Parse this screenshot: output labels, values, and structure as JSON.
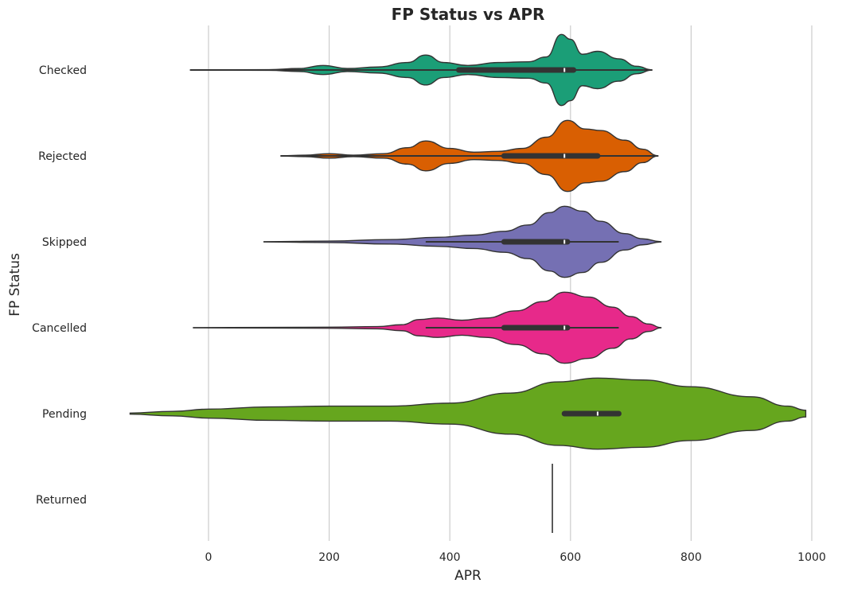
{
  "chart_data": {
    "type": "violin",
    "orientation": "horizontal",
    "title": "FP Status vs APR",
    "xlabel": "APR",
    "ylabel": "FP Status",
    "xlim": [
      -140,
      1000
    ],
    "xticks": [
      0,
      200,
      400,
      600,
      800,
      1000
    ],
    "grid": "vertical",
    "categories": [
      "Checked",
      "Rejected",
      "Skipped",
      "Cancelled",
      "Pending",
      "Returned"
    ],
    "series": [
      {
        "category": "Checked",
        "color": "#1b9e77",
        "min": -30,
        "max": 735,
        "q1": 415,
        "median": 590,
        "q3": 605,
        "whisker_low": -30,
        "whisker_high": 735,
        "density": [
          [
            -30,
            0.004
          ],
          [
            100,
            0.01
          ],
          [
            150,
            0.04
          ],
          [
            190,
            0.12
          ],
          [
            230,
            0.04
          ],
          [
            280,
            0.08
          ],
          [
            330,
            0.2
          ],
          [
            360,
            0.4
          ],
          [
            390,
            0.2
          ],
          [
            430,
            0.12
          ],
          [
            480,
            0.2
          ],
          [
            530,
            0.22
          ],
          [
            560,
            0.35
          ],
          [
            585,
            0.95
          ],
          [
            600,
            0.82
          ],
          [
            620,
            0.42
          ],
          [
            645,
            0.5
          ],
          [
            680,
            0.3
          ],
          [
            710,
            0.1
          ],
          [
            735,
            0.004
          ]
        ]
      },
      {
        "category": "Rejected",
        "color": "#d95f02",
        "min": 120,
        "max": 745,
        "q1": 490,
        "median": 590,
        "q3": 645,
        "whisker_low": 120,
        "whisker_high": 745,
        "density": [
          [
            120,
            0.004
          ],
          [
            160,
            0.02
          ],
          [
            200,
            0.06
          ],
          [
            240,
            0.02
          ],
          [
            290,
            0.06
          ],
          [
            330,
            0.22
          ],
          [
            360,
            0.4
          ],
          [
            400,
            0.2
          ],
          [
            440,
            0.1
          ],
          [
            480,
            0.12
          ],
          [
            520,
            0.2
          ],
          [
            560,
            0.5
          ],
          [
            595,
            0.95
          ],
          [
            625,
            0.72
          ],
          [
            650,
            0.68
          ],
          [
            690,
            0.42
          ],
          [
            720,
            0.18
          ],
          [
            745,
            0.004
          ]
        ]
      },
      {
        "category": "Skipped",
        "color": "#7570b3",
        "min": 92,
        "max": 750,
        "q1": 490,
        "median": 590,
        "q3": 595,
        "whisker_low": 360,
        "whisker_high": 680,
        "density": [
          [
            92,
            0.004
          ],
          [
            200,
            0.02
          ],
          [
            300,
            0.06
          ],
          [
            380,
            0.12
          ],
          [
            440,
            0.18
          ],
          [
            490,
            0.28
          ],
          [
            530,
            0.45
          ],
          [
            565,
            0.78
          ],
          [
            590,
            0.95
          ],
          [
            620,
            0.82
          ],
          [
            650,
            0.55
          ],
          [
            690,
            0.22
          ],
          [
            720,
            0.08
          ],
          [
            750,
            0.004
          ]
        ]
      },
      {
        "category": "Cancelled",
        "color": "#e7298a",
        "min": -25,
        "max": 750,
        "q1": 490,
        "median": 590,
        "q3": 595,
        "whisker_low": 360,
        "whisker_high": 680,
        "density": [
          [
            -25,
            0.004
          ],
          [
            100,
            0.01
          ],
          [
            200,
            0.015
          ],
          [
            280,
            0.03
          ],
          [
            320,
            0.08
          ],
          [
            350,
            0.22
          ],
          [
            380,
            0.26
          ],
          [
            420,
            0.2
          ],
          [
            460,
            0.26
          ],
          [
            510,
            0.45
          ],
          [
            555,
            0.7
          ],
          [
            590,
            0.95
          ],
          [
            630,
            0.82
          ],
          [
            670,
            0.55
          ],
          [
            700,
            0.3
          ],
          [
            730,
            0.1
          ],
          [
            750,
            0.004
          ]
        ]
      },
      {
        "category": "Pending",
        "color": "#66a61e",
        "min": -130,
        "max": 990,
        "q1": 590,
        "median": 645,
        "q3": 680,
        "whisker_low": 590,
        "whisker_high": 680,
        "density": [
          [
            -130,
            0.015
          ],
          [
            -60,
            0.06
          ],
          [
            0,
            0.12
          ],
          [
            100,
            0.18
          ],
          [
            200,
            0.2
          ],
          [
            300,
            0.2
          ],
          [
            400,
            0.28
          ],
          [
            500,
            0.55
          ],
          [
            580,
            0.85
          ],
          [
            645,
            0.95
          ],
          [
            720,
            0.9
          ],
          [
            800,
            0.72
          ],
          [
            900,
            0.45
          ],
          [
            960,
            0.2
          ],
          [
            990,
            0.09
          ]
        ]
      },
      {
        "category": "Returned",
        "color": "#e6ab02",
        "min": 570,
        "max": 570,
        "q1": 570,
        "median": 570,
        "q3": 570,
        "whisker_low": 570,
        "whisker_high": 570,
        "density": []
      }
    ]
  }
}
